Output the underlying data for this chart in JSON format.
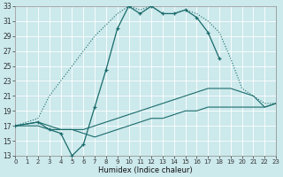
{
  "xlabel": "Humidex (Indice chaleur)",
  "bg_color": "#cce9ec",
  "grid_color": "#b0d8dc",
  "line_color": "#1a6b6b",
  "xlim": [
    0,
    23
  ],
  "ylim": [
    13,
    33
  ],
  "xticks": [
    0,
    1,
    2,
    3,
    4,
    5,
    6,
    7,
    8,
    9,
    10,
    11,
    12,
    13,
    14,
    15,
    16,
    17,
    18,
    19,
    20,
    21,
    22,
    23
  ],
  "yticks": [
    13,
    15,
    17,
    19,
    21,
    23,
    25,
    27,
    29,
    31,
    33
  ],
  "curve_main": {
    "x": [
      0,
      2,
      3,
      4,
      5,
      6,
      7,
      8,
      9,
      10,
      11,
      12,
      13,
      14,
      15,
      16,
      17,
      18
    ],
    "y": [
      17,
      17.5,
      16.5,
      16,
      13,
      14.5,
      19.5,
      24.5,
      30,
      33,
      32,
      33,
      32,
      32,
      32.5,
      31.5,
      29.5,
      26
    ]
  },
  "curve_dotted": {
    "x": [
      0,
      2,
      3,
      4,
      5,
      6,
      7,
      8,
      9,
      10,
      11,
      12,
      13,
      14,
      15,
      16,
      17,
      18,
      19,
      20,
      21,
      22,
      23
    ],
    "y": [
      17,
      18,
      21,
      23,
      25,
      27,
      29,
      30.5,
      32,
      33,
      32.5,
      33,
      32,
      32,
      32.5,
      32,
      31,
      29.5,
      26,
      22,
      21,
      20,
      20
    ]
  },
  "curve_diag_upper": {
    "x": [
      0,
      2,
      3,
      4,
      5,
      6,
      7,
      8,
      9,
      10,
      11,
      12,
      13,
      14,
      15,
      16,
      17,
      18,
      19,
      20,
      21,
      22,
      23
    ],
    "y": [
      17,
      17.5,
      17,
      16.5,
      16.5,
      16.5,
      17,
      17.5,
      18,
      18.5,
      19,
      19.5,
      20,
      20.5,
      21,
      21.5,
      22,
      22,
      22,
      21.5,
      21,
      19.5,
      20
    ]
  },
  "curve_diag_lower": {
    "x": [
      0,
      2,
      3,
      4,
      5,
      6,
      7,
      8,
      9,
      10,
      11,
      12,
      13,
      14,
      15,
      16,
      17,
      18,
      19,
      20,
      21,
      22,
      23
    ],
    "y": [
      17,
      17,
      16.5,
      16.5,
      16.5,
      16,
      15.5,
      16,
      16.5,
      17,
      17.5,
      18,
      18,
      18.5,
      19,
      19,
      19.5,
      19.5,
      19.5,
      19.5,
      19.5,
      19.5,
      20
    ]
  }
}
